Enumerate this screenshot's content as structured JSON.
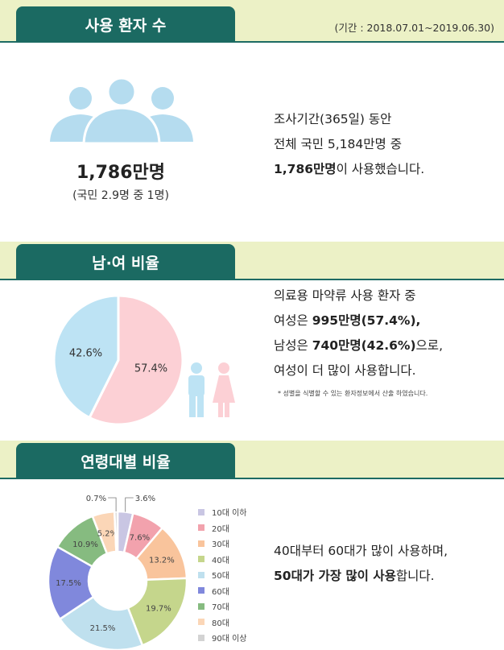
{
  "section1": {
    "title": "사용 환자 수",
    "period": "(기간 : 2018.07.01~2019.06.30)",
    "total": "1,786만명",
    "ratio": "(국민 2.9명 중 1명)",
    "desc_line1": "조사기간(365일) 동안",
    "desc_line2": "전체 국민 5,184만명 중",
    "desc_line3_bold": "1,786만명",
    "desc_line3_rest": "이 사용했습니다."
  },
  "section2": {
    "title": "남·여 비율",
    "desc_line1": "의료용 마약류 사용 환자 중",
    "desc_line2_pre": "여성은 ",
    "desc_line2_bold": "995만명(57.4%),",
    "desc_line3_pre": "남성은 ",
    "desc_line3_bold": "740만명(42.6%)",
    "desc_line3_rest": "으로,",
    "desc_line4": "여성이 더 많이 사용합니다.",
    "note": "* 성별을 식별할 수 있는 환자정보에서 산출 하였습니다."
  },
  "section3": {
    "title": "연령대별 비율",
    "desc_line1": "40대부터 60대가 많이 사용하며,",
    "desc_line2_bold": "50대가 가장 많이 사용",
    "desc_line2_rest": "합니다."
  },
  "colors": {
    "header_green": "#1b6a62",
    "band": "#ecf1c6",
    "people": "#b5dcef",
    "female": "#fcd0d5",
    "male": "#bde3f4"
  },
  "chart_data": [
    {
      "type": "pie",
      "labels": [
        "여성",
        "남성"
      ],
      "values": [
        57.4,
        42.6
      ],
      "value_labels": [
        "57.4%",
        "42.6%"
      ],
      "colors": [
        "#fcd0d5",
        "#bde3f4"
      ]
    },
    {
      "type": "pie",
      "style": "donut",
      "labels": [
        "10대 이하",
        "20대",
        "30대",
        "40대",
        "50대",
        "60대",
        "70대",
        "80대",
        "90대 이상"
      ],
      "values": [
        3.6,
        7.6,
        13.2,
        19.7,
        21.5,
        17.5,
        10.9,
        5.2,
        0.7
      ],
      "value_labels": [
        "3.6%",
        "7.6%",
        "13.2%",
        "19.7%",
        "21.5%",
        "17.5%",
        "10.9%",
        "5.2%",
        "0.7%"
      ],
      "colors": [
        "#c9c6e3",
        "#f2a2ad",
        "#f9c49c",
        "#c5d68c",
        "#bfe0ee",
        "#8088dc",
        "#86bb80",
        "#fbd6b7",
        "#d3d3d3"
      ],
      "legend_position": "right"
    }
  ]
}
